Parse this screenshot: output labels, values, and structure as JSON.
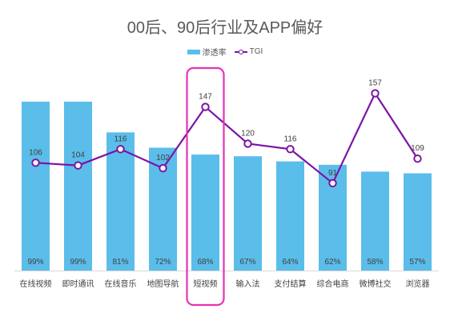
{
  "chart_data": {
    "type": "bar",
    "title": "00后、90后行业及APP偏好",
    "categories": [
      "在线视频",
      "即时通讯",
      "在线音乐",
      "地图导航",
      "短视频",
      "输入法",
      "支付结算",
      "综合电商",
      "微博社交",
      "浏览器"
    ],
    "series": [
      {
        "name": "渗透率",
        "type": "bar",
        "values": [
          99,
          99,
          81,
          72,
          68,
          67,
          64,
          62,
          58,
          57
        ],
        "labels": [
          "99%",
          "99%",
          "81%",
          "72%",
          "68%",
          "67%",
          "64%",
          "62%",
          "58%",
          "57%"
        ],
        "color": "#5bbde9"
      },
      {
        "name": "TGI",
        "type": "line",
        "values": [
          106,
          104,
          116,
          102,
          147,
          120,
          116,
          91,
          157,
          109
        ],
        "labels": [
          "106",
          "104",
          "116",
          "102",
          "147",
          "120",
          "116",
          "91",
          "157",
          "109"
        ],
        "color": "#7a14a6"
      }
    ],
    "highlight": {
      "category": "短视频",
      "color": "#e633b5"
    },
    "legend_position": "top-center",
    "grid": false
  }
}
